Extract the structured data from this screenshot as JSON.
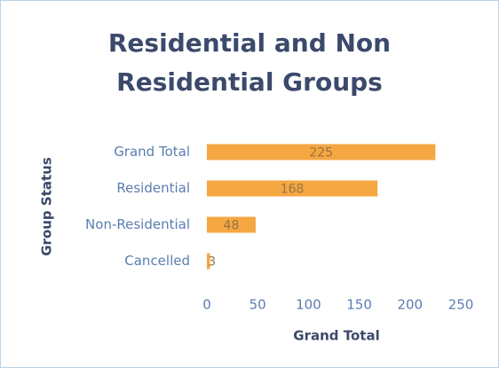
{
  "chart_data": {
    "type": "bar",
    "orientation": "horizontal",
    "title": "Residential and Non Residential Groups",
    "categories": [
      "Grand Total",
      "Residential",
      "Non-Residential",
      "Cancelled"
    ],
    "values": [
      225,
      168,
      48,
      3
    ],
    "color": "#f5a742",
    "xlabel": "Grand Total",
    "ylabel": "Group Status",
    "xlim": [
      0,
      250
    ],
    "xticks": [
      0,
      50,
      100,
      150,
      200,
      250
    ],
    "grid": false
  }
}
